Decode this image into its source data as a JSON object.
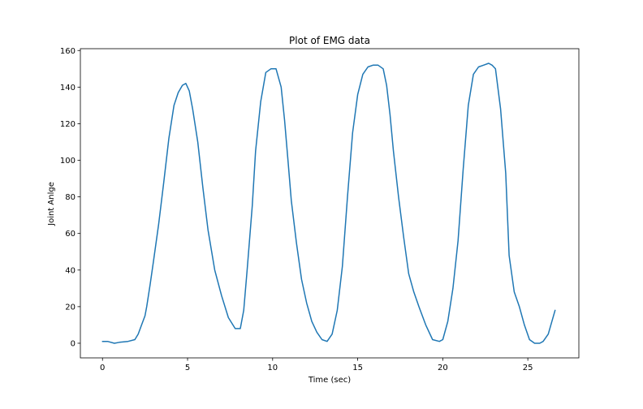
{
  "chart_data": {
    "type": "line",
    "title": "Plot of EMG data",
    "xlabel": "Time (sec)",
    "ylabel": "Joint Anlge",
    "xlim": [
      -1.3,
      28.0
    ],
    "ylim": [
      -8,
      161
    ],
    "xticks": [
      0,
      5,
      10,
      15,
      20,
      25
    ],
    "yticks": [
      0,
      20,
      40,
      60,
      80,
      100,
      120,
      140,
      160
    ],
    "grid": false,
    "series": [
      {
        "color": "#1f77b4",
        "x": [
          0.0,
          0.3,
          0.7,
          1.0,
          1.5,
          1.9,
          2.1,
          2.3,
          2.5,
          2.6,
          2.8,
          3.0,
          3.3,
          3.6,
          3.9,
          4.2,
          4.45,
          4.7,
          4.9,
          5.1,
          5.3,
          5.6,
          5.9,
          6.2,
          6.6,
          7.0,
          7.4,
          7.8,
          8.1,
          8.3,
          8.5,
          8.8,
          9.0,
          9.3,
          9.6,
          9.9,
          10.2,
          10.5,
          10.7,
          10.9,
          11.1,
          11.4,
          11.7,
          12.0,
          12.3,
          12.6,
          12.9,
          13.2,
          13.5,
          13.8,
          14.1,
          14.4,
          14.7,
          15.0,
          15.3,
          15.6,
          15.9,
          16.2,
          16.5,
          16.7,
          16.9,
          17.1,
          17.4,
          17.7,
          18.0,
          18.3,
          18.6,
          19.0,
          19.4,
          19.8,
          20.0,
          20.3,
          20.6,
          20.9,
          21.2,
          21.5,
          21.8,
          22.1,
          22.4,
          22.7,
          22.9,
          23.1,
          23.4,
          23.7,
          23.9,
          24.2,
          24.5,
          24.8,
          25.1,
          25.4,
          25.7,
          25.9,
          26.2,
          26.6
        ],
        "y": [
          1,
          1,
          0,
          0.5,
          1,
          2,
          5,
          10,
          15,
          20,
          32,
          45,
          65,
          88,
          112,
          130,
          137,
          141,
          142,
          138,
          128,
          110,
          85,
          62,
          40,
          26,
          14,
          8,
          8,
          18,
          40,
          75,
          105,
          132,
          148,
          150,
          150,
          140,
          122,
          100,
          78,
          55,
          35,
          22,
          12,
          6,
          2,
          1,
          5,
          18,
          42,
          80,
          115,
          136,
          147,
          151,
          152,
          152,
          150,
          141,
          125,
          105,
          80,
          58,
          38,
          28,
          20,
          10,
          2,
          1,
          2,
          12,
          30,
          56,
          95,
          130,
          147,
          151,
          152,
          153,
          152,
          150,
          128,
          93,
          48,
          28,
          20,
          10,
          2,
          0,
          0,
          1,
          5,
          18
        ]
      }
    ]
  }
}
